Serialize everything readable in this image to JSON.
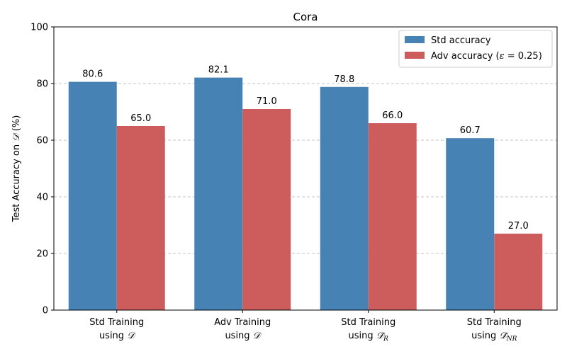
{
  "chart_data": {
    "type": "bar",
    "title": "Cora",
    "ylabel": "Test Accuracy on",
    "ylabel_symbol": "𝒟",
    "ylabel_unit": "(%)",
    "ylim": [
      0,
      100
    ],
    "yticks": [
      0,
      20,
      40,
      60,
      80,
      100
    ],
    "grid": "horizontal-dashed",
    "legend_placement": "top-right",
    "categories": [
      {
        "line1": "Std Training",
        "line2": "using",
        "symbol": "𝒟",
        "tilde": false,
        "sub": ""
      },
      {
        "line1": "Adv Training",
        "line2": "using",
        "symbol": "𝒟",
        "tilde": false,
        "sub": ""
      },
      {
        "line1": "Std Training",
        "line2": "using",
        "symbol": "𝒟",
        "tilde": true,
        "sub": "R"
      },
      {
        "line1": "Std Training",
        "line2": "using",
        "symbol": "𝒟",
        "tilde": true,
        "sub": "NR"
      }
    ],
    "series": [
      {
        "name": "Std accuracy",
        "color": "#4682b4",
        "values": [
          80.6,
          82.1,
          78.8,
          60.7
        ]
      },
      {
        "name": "Adv accuracy (",
        "name_symbol": "ε",
        "name_rest": " = 0.25)",
        "color": "#cd5c5c",
        "values": [
          65.0,
          71.0,
          66.0,
          27.0
        ]
      }
    ]
  }
}
